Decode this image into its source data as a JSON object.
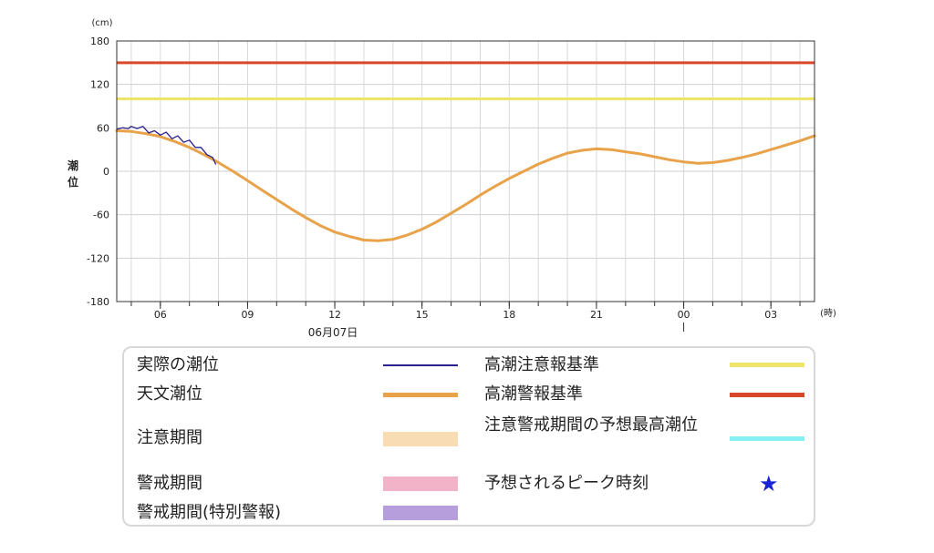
{
  "chart_data": {
    "type": "line",
    "y_unit_label": "(cm)",
    "x_unit_label": "(時)",
    "ylabel_chars": [
      "潮",
      "位"
    ],
    "date_label": "06月07日",
    "ylim": [
      -180,
      180
    ],
    "y_ticks": [
      180,
      120,
      60,
      0,
      -60,
      -120,
      -180
    ],
    "x_range_hours": [
      4.5,
      28.5
    ],
    "x_ticks": [
      {
        "hour": 6,
        "label": "06"
      },
      {
        "hour": 9,
        "label": "09"
      },
      {
        "hour": 12,
        "label": "12"
      },
      {
        "hour": 15,
        "label": "15"
      },
      {
        "hour": 18,
        "label": "18"
      },
      {
        "hour": 21,
        "label": "21"
      },
      {
        "hour": 24,
        "label": "00"
      },
      {
        "hour": 27,
        "label": "03"
      }
    ],
    "grid": true,
    "thresholds": [
      {
        "name": "高潮警報基準",
        "value": 150,
        "color": "#d9472b"
      },
      {
        "name": "高潮注意報基準",
        "value": 100,
        "color": "#eee46a"
      }
    ],
    "series": [
      {
        "name": "天文潮位",
        "color": "#e8a24a",
        "x": [
          4.5,
          5,
          5.5,
          6,
          6.5,
          7,
          7.5,
          8,
          8.5,
          9,
          9.5,
          10,
          10.5,
          11,
          11.5,
          12,
          12.5,
          13,
          13.5,
          14,
          14.5,
          15,
          15.5,
          16,
          16.5,
          17,
          17.5,
          18,
          18.5,
          19,
          19.5,
          20,
          20.5,
          21,
          21.5,
          22,
          22.5,
          23,
          23.5,
          24,
          24.5,
          25,
          25.5,
          26,
          26.5,
          27,
          27.5,
          28,
          28.5
        ],
        "values": [
          56,
          55,
          52,
          48,
          41,
          33,
          23,
          12,
          0,
          -13,
          -26,
          -39,
          -52,
          -64,
          -75,
          -84,
          -90,
          -95,
          -96,
          -94,
          -88,
          -80,
          -70,
          -58,
          -46,
          -33,
          -21,
          -10,
          0,
          10,
          18,
          25,
          29,
          31,
          30,
          27,
          24,
          20,
          16,
          13,
          11,
          12,
          15,
          19,
          24,
          30,
          36,
          42,
          49
        ]
      },
      {
        "name": "実際の潮位",
        "color": "#2a1f8f",
        "x": [
          4.5,
          4.7,
          4.9,
          5.0,
          5.2,
          5.4,
          5.6,
          5.8,
          6.0,
          6.2,
          6.4,
          6.6,
          6.8,
          7.0,
          7.2,
          7.4,
          7.6,
          7.8,
          7.9
        ],
        "values": [
          58,
          60,
          59,
          62,
          59,
          62,
          53,
          56,
          50,
          54,
          45,
          49,
          40,
          43,
          33,
          33,
          23,
          19,
          10
        ]
      }
    ]
  },
  "legend": {
    "actual": "実際の潮位",
    "astronomical": "天文潮位",
    "caution_period": "注意期間",
    "warning_period": "警戒期間",
    "special_warning_period": "警戒期間(特別警報)",
    "advisory_threshold": "高潮注意報基準",
    "warning_threshold": "高潮警報基準",
    "predicted_peak_level": "注意警戒期間の予想最高潮位",
    "predicted_peak_time": "予想されるピーク時刻",
    "colors": {
      "actual": "#2a1f8f",
      "astronomical": "#e8a24a",
      "caution_period": "#f7dcb4",
      "warning_period": "#f2b2c8",
      "special_warning_period": "#b69ddc",
      "advisory_threshold": "#eee46a",
      "warning_threshold": "#d9472b",
      "predicted_peak_level": "#86f0f6",
      "predicted_peak_time": "#1a24d6"
    },
    "star_icon": "star-icon"
  }
}
